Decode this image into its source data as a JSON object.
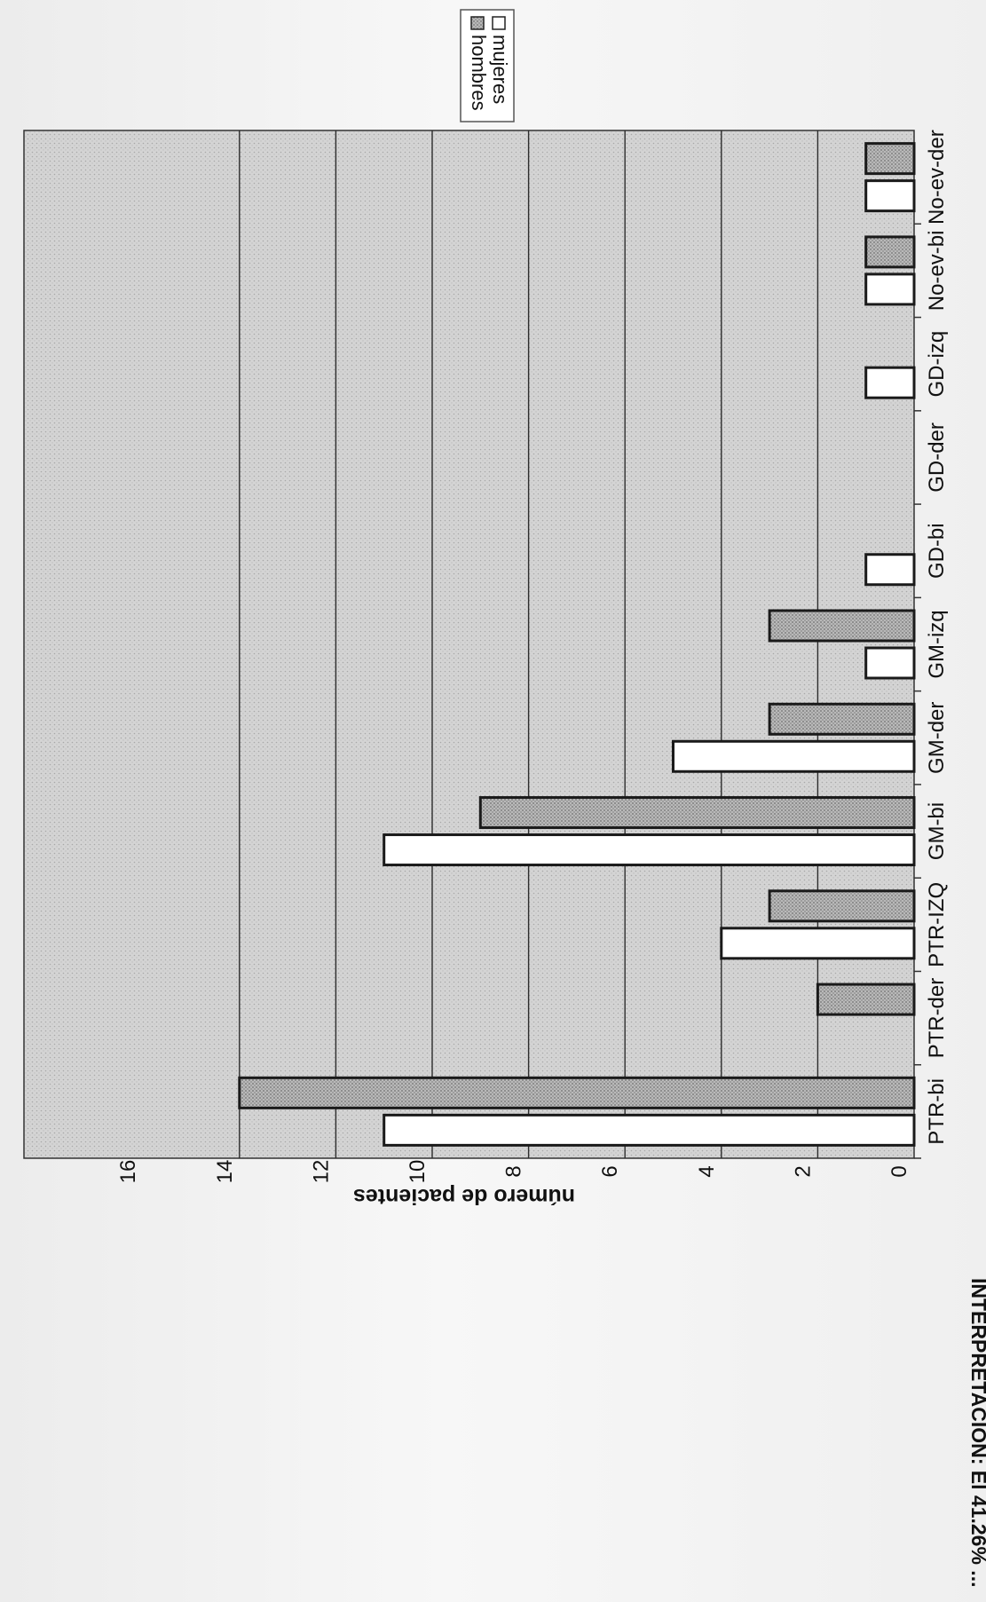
{
  "chart_data": {
    "type": "bar",
    "orientation": "rotated-90-clockwise",
    "ylabel": "número de pacientes",
    "ylim": [
      0,
      16
    ],
    "ytick_step": 2,
    "yticks": [
      "0",
      "2",
      "4",
      "6",
      "8",
      "10",
      "12",
      "14",
      "16"
    ],
    "categories": [
      "PTR-bi",
      "PTR-der",
      "PTR-IZQ",
      "GM-bi",
      "GM-der",
      "GM-izq",
      "GD-bi",
      "GD-der",
      "GD-izq",
      "No-ev-bi",
      "No-ev-der"
    ],
    "series": [
      {
        "name": "mujeres",
        "values": [
          11,
          0,
          4,
          11,
          5,
          1,
          1,
          0,
          1,
          1,
          1
        ]
      },
      {
        "name": "hombres",
        "values": [
          14,
          2,
          3,
          9,
          3,
          3,
          0,
          0,
          0,
          1,
          1
        ]
      }
    ],
    "grid": true,
    "legend": "top-right"
  },
  "caption": "INTERPRETACION: El 41.26% ..."
}
